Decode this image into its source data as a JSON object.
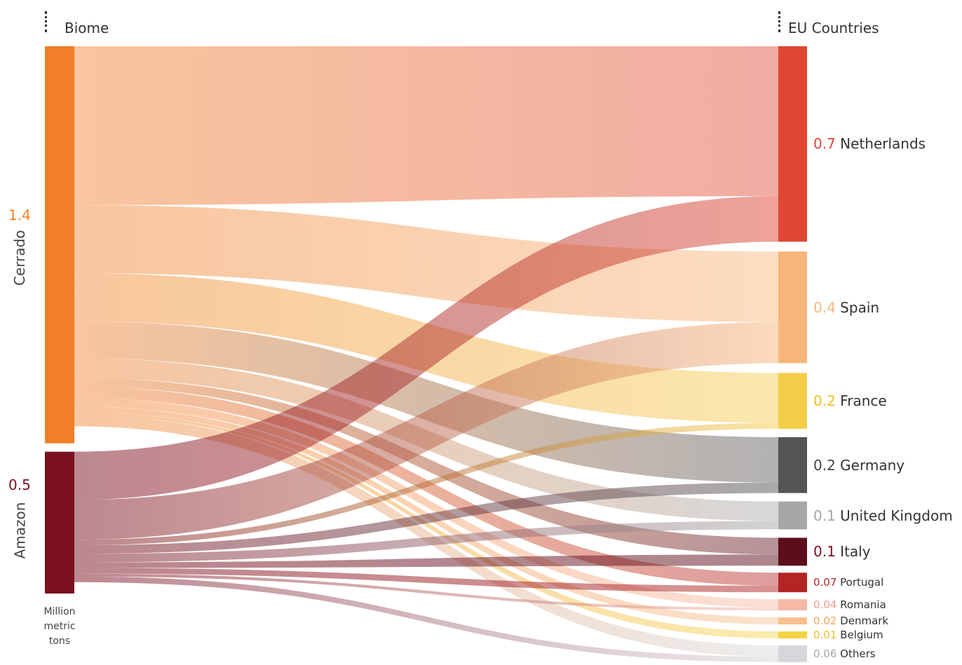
{
  "chart_data": {
    "type": "sankey",
    "left_header": "Biome",
    "right_header": "EU Countries",
    "units_label": [
      "Million",
      "metric",
      "tons"
    ],
    "sources": [
      {
        "name": "Cerrado",
        "value": 1.4,
        "value_label": "1.4",
        "color": "#f07f27",
        "value_color": "#f07f27"
      },
      {
        "name": "Amazon",
        "value": 0.5,
        "value_label": "0.5",
        "color": "#7a1020",
        "value_color": "#7a1020"
      }
    ],
    "targets": [
      {
        "name": "Netherlands",
        "value": 0.7,
        "value_label": "0.7",
        "color": "#df4733",
        "value_color": "#df4733",
        "size": "large"
      },
      {
        "name": "Spain",
        "value": 0.4,
        "value_label": "0.4",
        "color": "#f8b57a",
        "value_color": "#f8b57a",
        "size": "large"
      },
      {
        "name": "France",
        "value": 0.2,
        "value_label": "0.2",
        "color": "#f4cd48",
        "value_color": "#efbf22",
        "size": "large"
      },
      {
        "name": "Germany",
        "value": 0.2,
        "value_label": "0.2",
        "color": "#555556",
        "value_color": "#444444",
        "size": "large"
      },
      {
        "name": "United Kingdom",
        "value": 0.1,
        "value_label": "0.1",
        "color": "#a6a7a9",
        "value_color": "#a6a7a9",
        "size": "large"
      },
      {
        "name": "Italy",
        "value": 0.1,
        "value_label": "0.1",
        "color": "#5c0f1b",
        "value_color": "#7a1020",
        "size": "large"
      },
      {
        "name": "Portugal",
        "value": 0.07,
        "value_label": "0.07",
        "color": "#b42525",
        "value_color": "#b42525",
        "size": "small"
      },
      {
        "name": "Romania",
        "value": 0.04,
        "value_label": "0.04",
        "color": "#f6b9a6",
        "value_color": "#f09b84",
        "size": "small"
      },
      {
        "name": "Denmark",
        "value": 0.02,
        "value_label": "0.02",
        "color": "#f7be8e",
        "value_color": "#f4a35a",
        "size": "small"
      },
      {
        "name": "Belgium",
        "value": 0.01,
        "value_label": "0.01",
        "color": "#f5d348",
        "value_color": "#efbf22",
        "size": "small"
      },
      {
        "name": "Others",
        "value": 0.06,
        "value_label": "0.06",
        "color": "#d6d7da",
        "value_color": "#a6a7a9",
        "size": "small"
      }
    ],
    "links": [
      {
        "source": "Cerrado",
        "target": "Netherlands",
        "value": 0.56
      },
      {
        "source": "Cerrado",
        "target": "Spain",
        "value": 0.24
      },
      {
        "source": "Cerrado",
        "target": "France",
        "value": 0.17
      },
      {
        "source": "Cerrado",
        "target": "Germany",
        "value": 0.13
      },
      {
        "source": "Cerrado",
        "target": "United Kingdom",
        "value": 0.07
      },
      {
        "source": "Cerrado",
        "target": "Italy",
        "value": 0.03
      },
      {
        "source": "Cerrado",
        "target": "Portugal",
        "value": 0.04
      },
      {
        "source": "Cerrado",
        "target": "Romania",
        "value": 0.03
      },
      {
        "source": "Cerrado",
        "target": "Denmark",
        "value": 0.02
      },
      {
        "source": "Cerrado",
        "target": "Belgium",
        "value": 0.01
      },
      {
        "source": "Cerrado",
        "target": "Others",
        "value": 0.04
      },
      {
        "source": "Amazon",
        "target": "Netherlands",
        "value": 0.17
      },
      {
        "source": "Amazon",
        "target": "Spain",
        "value": 0.14
      },
      {
        "source": "Amazon",
        "target": "France",
        "value": 0.02
      },
      {
        "source": "Amazon",
        "target": "Germany",
        "value": 0.03
      },
      {
        "source": "Amazon",
        "target": "United Kingdom",
        "value": 0.03
      },
      {
        "source": "Amazon",
        "target": "Italy",
        "value": 0.02
      },
      {
        "source": "Amazon",
        "target": "Portugal",
        "value": 0.02
      },
      {
        "source": "Amazon",
        "target": "Romania",
        "value": 0.01
      },
      {
        "source": "Amazon",
        "target": "Others",
        "value": 0.02
      }
    ]
  }
}
